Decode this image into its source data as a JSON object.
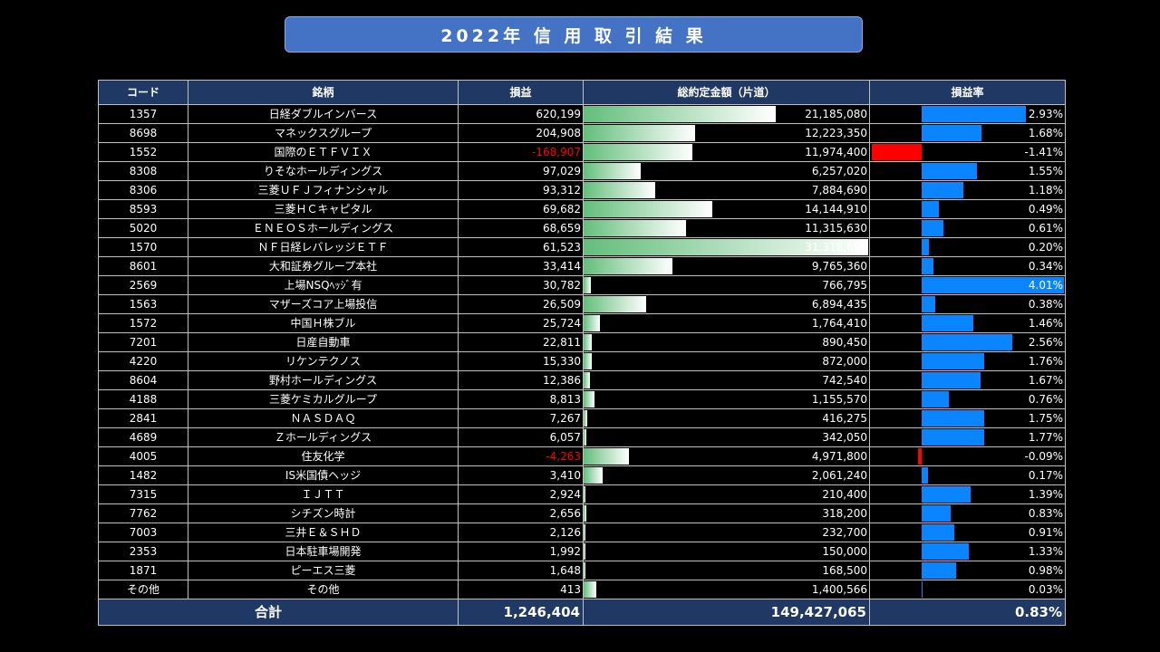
{
  "title": "2022年 信 用 取 引 結 果",
  "headers": [
    "コード",
    "銘柄",
    "損益",
    "総約定金額（片道）",
    "損益率"
  ],
  "rows": [
    {
      "code": "1357",
      "name": "日経ダブルインバース",
      "pl": "620,199",
      "amount": "21,185,080",
      "rate": "2.93%",
      "amt_v": 21185080,
      "rate_v": 2.93
    },
    {
      "code": "8698",
      "name": "マネックスグループ",
      "pl": "204,908",
      "amount": "12,223,350",
      "rate": "1.68%",
      "amt_v": 12223350,
      "rate_v": 1.68
    },
    {
      "code": "1552",
      "name": "国際のＥＴＦＶＩＸ",
      "pl": "-168,907",
      "amount": "11,974,400",
      "rate": "-1.41%",
      "amt_v": 11974400,
      "rate_v": -1.41
    },
    {
      "code": "8308",
      "name": "りそなホールディングス",
      "pl": "97,029",
      "amount": "6,257,020",
      "rate": "1.55%",
      "amt_v": 6257020,
      "rate_v": 1.55
    },
    {
      "code": "8306",
      "name": "三菱ＵＦＪフィナンシャル",
      "pl": "93,312",
      "amount": "7,884,690",
      "rate": "1.18%",
      "amt_v": 7884690,
      "rate_v": 1.18
    },
    {
      "code": "8593",
      "name": "三菱ＨＣキャピタル",
      "pl": "69,682",
      "amount": "14,144,910",
      "rate": "0.49%",
      "amt_v": 14144910,
      "rate_v": 0.49
    },
    {
      "code": "5020",
      "name": "ＥＮＥＯＳホールディングス",
      "pl": "68,659",
      "amount": "11,315,630",
      "rate": "0.61%",
      "amt_v": 11315630,
      "rate_v": 0.61
    },
    {
      "code": "1570",
      "name": "ＮＦ日経レバレッジＥＴＦ",
      "pl": "61,523",
      "amount": "31,318,694",
      "rate": "0.20%",
      "amt_v": 31318694,
      "rate_v": 0.2
    },
    {
      "code": "8601",
      "name": "大和証券グループ本社",
      "pl": "33,414",
      "amount": "9,765,360",
      "rate": "0.34%",
      "amt_v": 9765360,
      "rate_v": 0.34
    },
    {
      "code": "2569",
      "name": "上場NSQﾍｯｼﾞ有",
      "pl": "30,782",
      "amount": "766,795",
      "rate": "4.01%",
      "amt_v": 766795,
      "rate_v": 4.01
    },
    {
      "code": "1563",
      "name": "マザーズコア上場投信",
      "pl": "26,509",
      "amount": "6,894,435",
      "rate": "0.38%",
      "amt_v": 6894435,
      "rate_v": 0.38
    },
    {
      "code": "1572",
      "name": "中国Ｈ株ブル",
      "pl": "25,724",
      "amount": "1,764,410",
      "rate": "1.46%",
      "amt_v": 1764410,
      "rate_v": 1.46
    },
    {
      "code": "7201",
      "name": "日産自動車",
      "pl": "22,811",
      "amount": "890,450",
      "rate": "2.56%",
      "amt_v": 890450,
      "rate_v": 2.56
    },
    {
      "code": "4220",
      "name": "リケンテクノス",
      "pl": "15,330",
      "amount": "872,000",
      "rate": "1.76%",
      "amt_v": 872000,
      "rate_v": 1.76
    },
    {
      "code": "8604",
      "name": "野村ホールディングス",
      "pl": "12,386",
      "amount": "742,540",
      "rate": "1.67%",
      "amt_v": 742540,
      "rate_v": 1.67
    },
    {
      "code": "4188",
      "name": "三菱ケミカルグループ",
      "pl": "8,813",
      "amount": "1,155,570",
      "rate": "0.76%",
      "amt_v": 1155570,
      "rate_v": 0.76
    },
    {
      "code": "2841",
      "name": "ＮＡＳＤＡＱ",
      "pl": "7,267",
      "amount": "416,275",
      "rate": "1.75%",
      "amt_v": 416275,
      "rate_v": 1.75
    },
    {
      "code": "4689",
      "name": "Ｚホールディングス",
      "pl": "6,057",
      "amount": "342,050",
      "rate": "1.77%",
      "amt_v": 342050,
      "rate_v": 1.77
    },
    {
      "code": "4005",
      "name": "住友化学",
      "pl": "-4,263",
      "amount": "4,971,800",
      "rate": "-0.09%",
      "amt_v": 4971800,
      "rate_v": -0.09
    },
    {
      "code": "1482",
      "name": "IS米国債ヘッジ",
      "pl": "3,410",
      "amount": "2,061,240",
      "rate": "0.17%",
      "amt_v": 2061240,
      "rate_v": 0.17
    },
    {
      "code": "7315",
      "name": "ＩＪＴＴ",
      "pl": "2,924",
      "amount": "210,400",
      "rate": "1.39%",
      "amt_v": 210400,
      "rate_v": 1.39
    },
    {
      "code": "7762",
      "name": "シチズン時計",
      "pl": "2,656",
      "amount": "318,200",
      "rate": "0.83%",
      "amt_v": 318200,
      "rate_v": 0.83
    },
    {
      "code": "7003",
      "name": "三井Ｅ＆ＳＨＤ",
      "pl": "2,126",
      "amount": "232,700",
      "rate": "0.91%",
      "amt_v": 232700,
      "rate_v": 0.91
    },
    {
      "code": "2353",
      "name": "日本駐車場開発",
      "pl": "1,992",
      "amount": "150,000",
      "rate": "1.33%",
      "amt_v": 150000,
      "rate_v": 1.33
    },
    {
      "code": "1871",
      "name": "ピーエス三菱",
      "pl": "1,648",
      "amount": "168,500",
      "rate": "0.98%",
      "amt_v": 168500,
      "rate_v": 0.98
    },
    {
      "code": "その他",
      "name": "その他",
      "pl": "413",
      "amount": "1,400,566",
      "rate": "0.03%",
      "amt_v": 1400566,
      "rate_v": 0.03
    }
  ],
  "total": {
    "label": "合計",
    "pl": "1,246,404",
    "amount": "149,427,065",
    "rate": "0.83%"
  },
  "colors": {
    "bar_positive": "#0a84ff",
    "bar_negative": "#ff0000",
    "amount_bar_start": "#63be7b",
    "header_bg": "#1f3864",
    "title_bg": "#4472c4"
  }
}
